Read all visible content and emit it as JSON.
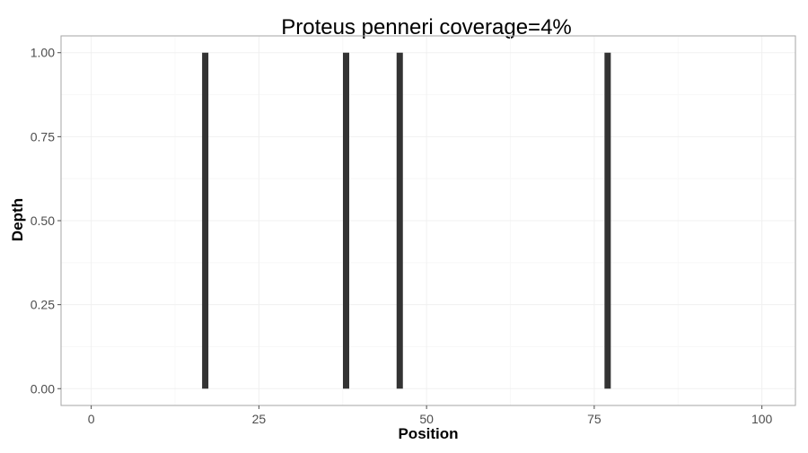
{
  "chart_data": {
    "type": "bar",
    "title": "Proteus penneri coverage=4%",
    "xlabel": "Position",
    "ylabel": "Depth",
    "x": [
      17,
      38,
      46,
      77
    ],
    "values": [
      1,
      1,
      1,
      1
    ],
    "xlim": [
      -4.5,
      105
    ],
    "ylim": [
      -0.05,
      1.05
    ],
    "xticks": [
      0,
      25,
      50,
      75,
      100
    ],
    "xtick_labels": [
      "0",
      "25",
      "50",
      "75",
      "100"
    ],
    "yticks": [
      0,
      0.25,
      0.5,
      0.75,
      1
    ],
    "ytick_labels": [
      "0.00",
      "0.25",
      "0.50",
      "0.75",
      "1.00"
    ],
    "grid": true,
    "colors": {
      "bar": "#333333",
      "panel_border": "#a6a6a6",
      "grid_major": "#f0f0f0",
      "grid_minor": "#f8f8f8",
      "text": "#000000",
      "tick_text": "#4d4d4d"
    }
  }
}
